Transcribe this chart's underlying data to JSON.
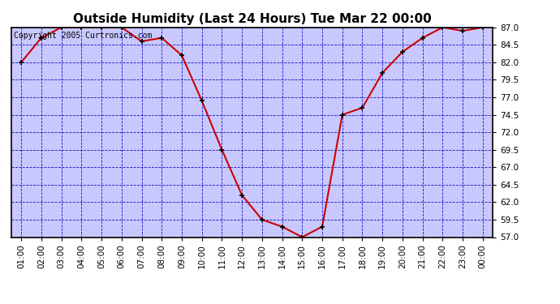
{
  "title": "Outside Humidity (Last 24 Hours) Tue Mar 22 00:00",
  "copyright": "Copyright 2005 Curtronics.com",
  "x_labels": [
    "01:00",
    "02:00",
    "03:00",
    "04:00",
    "05:00",
    "06:00",
    "07:00",
    "08:00",
    "09:00",
    "10:00",
    "11:00",
    "12:00",
    "13:00",
    "14:00",
    "15:00",
    "16:00",
    "17:00",
    "18:00",
    "19:00",
    "20:00",
    "21:00",
    "22:00",
    "23:00",
    "00:00"
  ],
  "x_values": [
    1,
    2,
    3,
    4,
    5,
    6,
    7,
    8,
    9,
    10,
    11,
    12,
    13,
    14,
    15,
    16,
    17,
    18,
    19,
    20,
    21,
    22,
    23,
    24
  ],
  "y_values": [
    82.0,
    85.5,
    87.0,
    87.0,
    87.0,
    87.0,
    85.0,
    85.5,
    83.0,
    76.5,
    69.5,
    63.0,
    59.5,
    58.5,
    57.0,
    58.5,
    74.5,
    75.5,
    80.5,
    83.5,
    85.5,
    87.0,
    86.5,
    87.0
  ],
  "ylim": [
    57.0,
    87.0
  ],
  "yticks": [
    57.0,
    59.5,
    62.0,
    64.5,
    67.0,
    69.5,
    72.0,
    74.5,
    77.0,
    79.5,
    82.0,
    84.5,
    87.0
  ],
  "line_color": "#cc0000",
  "marker_color": "#000000",
  "fig_bg_color": "#ffffff",
  "plot_bg_color": "#c8c8ff",
  "grid_color": "#0000bb",
  "title_color": "#000000",
  "axis_label_color": "#000000",
  "border_color": "#000000",
  "title_fontsize": 11,
  "tick_fontsize": 7.5,
  "copyright_fontsize": 7
}
